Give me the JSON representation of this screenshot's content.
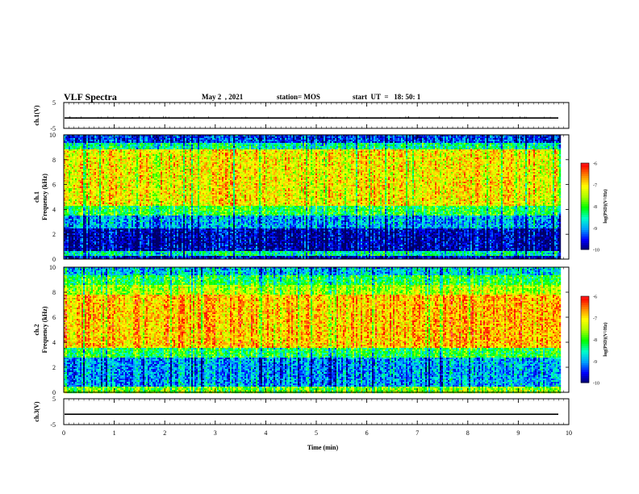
{
  "header": {
    "title": "VLF Spectra",
    "date": "May 2  , 2021",
    "station": "station= MOS",
    "start": "start  UT  =   18: 50: 1"
  },
  "chart_data": [
    {
      "type": "line",
      "panel": "ch1_waveform",
      "ylabel": "ch.1(V)",
      "ylim": [
        -5,
        5
      ],
      "yticks": [
        "5",
        "-5"
      ],
      "xlim": [
        0,
        10
      ],
      "series": [
        {
          "values_summary": "flat trace near -1 V with small spikes"
        }
      ]
    },
    {
      "type": "heatmap",
      "panel": "ch1_spectrogram",
      "ylabel": "ch.1\nFrequency (kHz)",
      "ylim": [
        0,
        10
      ],
      "yticks": [
        "0",
        "2",
        "4",
        "6",
        "8",
        "10"
      ],
      "xlim": [
        0,
        9.85
      ],
      "bands_kHz": [
        {
          "from": 0,
          "to": 0.3,
          "level": -9.6
        },
        {
          "from": 0.3,
          "to": 0.7,
          "level": -8.4
        },
        {
          "from": 0.7,
          "to": 2.5,
          "level": -9.7
        },
        {
          "from": 2.5,
          "to": 3.5,
          "level": -8.9
        },
        {
          "from": 3.5,
          "to": 4.3,
          "level": -8.0
        },
        {
          "from": 4.3,
          "to": 8.8,
          "level": -7.0
        },
        {
          "from": 8.8,
          "to": 9.4,
          "level": -8.3
        },
        {
          "from": 9.4,
          "to": 10,
          "level": -9.3
        }
      ],
      "colorbar": {
        "label": "log(PSD)(V²/Hz)",
        "range": [
          -10,
          -6
        ],
        "ticks": [
          "-6",
          "-7",
          "-8",
          "-9",
          "-10"
        ]
      }
    },
    {
      "type": "heatmap",
      "panel": "ch2_spectrogram",
      "ylabel": "ch.2\nFrequency (kHz)",
      "ylim": [
        0,
        10
      ],
      "yticks": [
        "0",
        "2",
        "4",
        "6",
        "8",
        "10"
      ],
      "xlim": [
        0,
        9.85
      ],
      "bands_kHz": [
        {
          "from": 0,
          "to": 0.4,
          "level": -7.6
        },
        {
          "from": 0.4,
          "to": 2.8,
          "level": -8.9
        },
        {
          "from": 2.8,
          "to": 3.6,
          "level": -8.0
        },
        {
          "from": 3.6,
          "to": 7.8,
          "level": -6.7
        },
        {
          "from": 7.8,
          "to": 8.6,
          "level": -7.4
        },
        {
          "from": 8.6,
          "to": 9.3,
          "level": -8.0
        },
        {
          "from": 9.3,
          "to": 10,
          "level": -8.7
        }
      ],
      "colorbar": {
        "label": "log(PSD)(V²/Hz)",
        "range": [
          -10,
          -6
        ],
        "ticks": [
          "-6",
          "-7",
          "-8",
          "-9",
          "-10"
        ]
      }
    },
    {
      "type": "line",
      "panel": "ch3_waveform",
      "ylabel": "ch.3(V)",
      "ylim": [
        -5,
        5
      ],
      "yticks": [
        "5",
        "-5"
      ],
      "xlim": [
        0,
        10
      ],
      "series": [
        {
          "values_summary": "flat trace near -1 V"
        }
      ]
    }
  ],
  "xaxis": {
    "label": "Time  (min)",
    "ticks": [
      "0",
      "1",
      "2",
      "3",
      "4",
      "5",
      "6",
      "7",
      "8",
      "9",
      "10"
    ],
    "range": [
      0,
      10
    ]
  },
  "colors": {
    "scale": [
      "#000066",
      "#0000ff",
      "#00a0ff",
      "#00ffcc",
      "#00ff00",
      "#aaff00",
      "#ffff00",
      "#ff8800",
      "#ff0000",
      "#ffffff"
    ]
  }
}
